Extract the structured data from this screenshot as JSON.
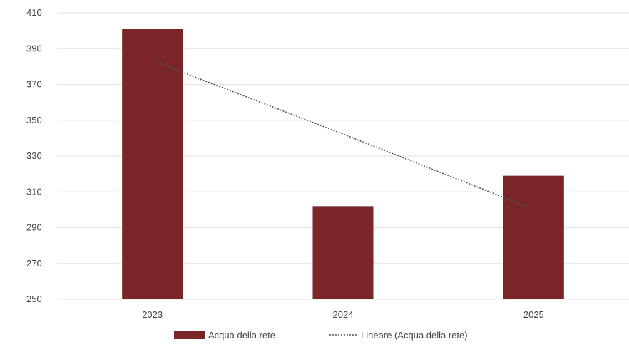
{
  "chart_data": {
    "type": "bar",
    "categories": [
      "2023",
      "2024",
      "2025"
    ],
    "series": [
      {
        "name": "Acqua della rete",
        "values": [
          401,
          302,
          319
        ]
      }
    ],
    "trendline": {
      "name": "Lineare (Acqua della rete)",
      "type": "linear",
      "values": [
        383.3,
        342.3,
        300.3
      ]
    },
    "ylim": [
      250,
      410
    ],
    "yticks": [
      250,
      270,
      290,
      310,
      330,
      350,
      370,
      390,
      410
    ],
    "grid": true,
    "legend_position": "bottom",
    "colors": {
      "bar": "#7a2628",
      "trendline": "#555555",
      "grid": "#e6e6e6",
      "text": "#444444"
    }
  }
}
